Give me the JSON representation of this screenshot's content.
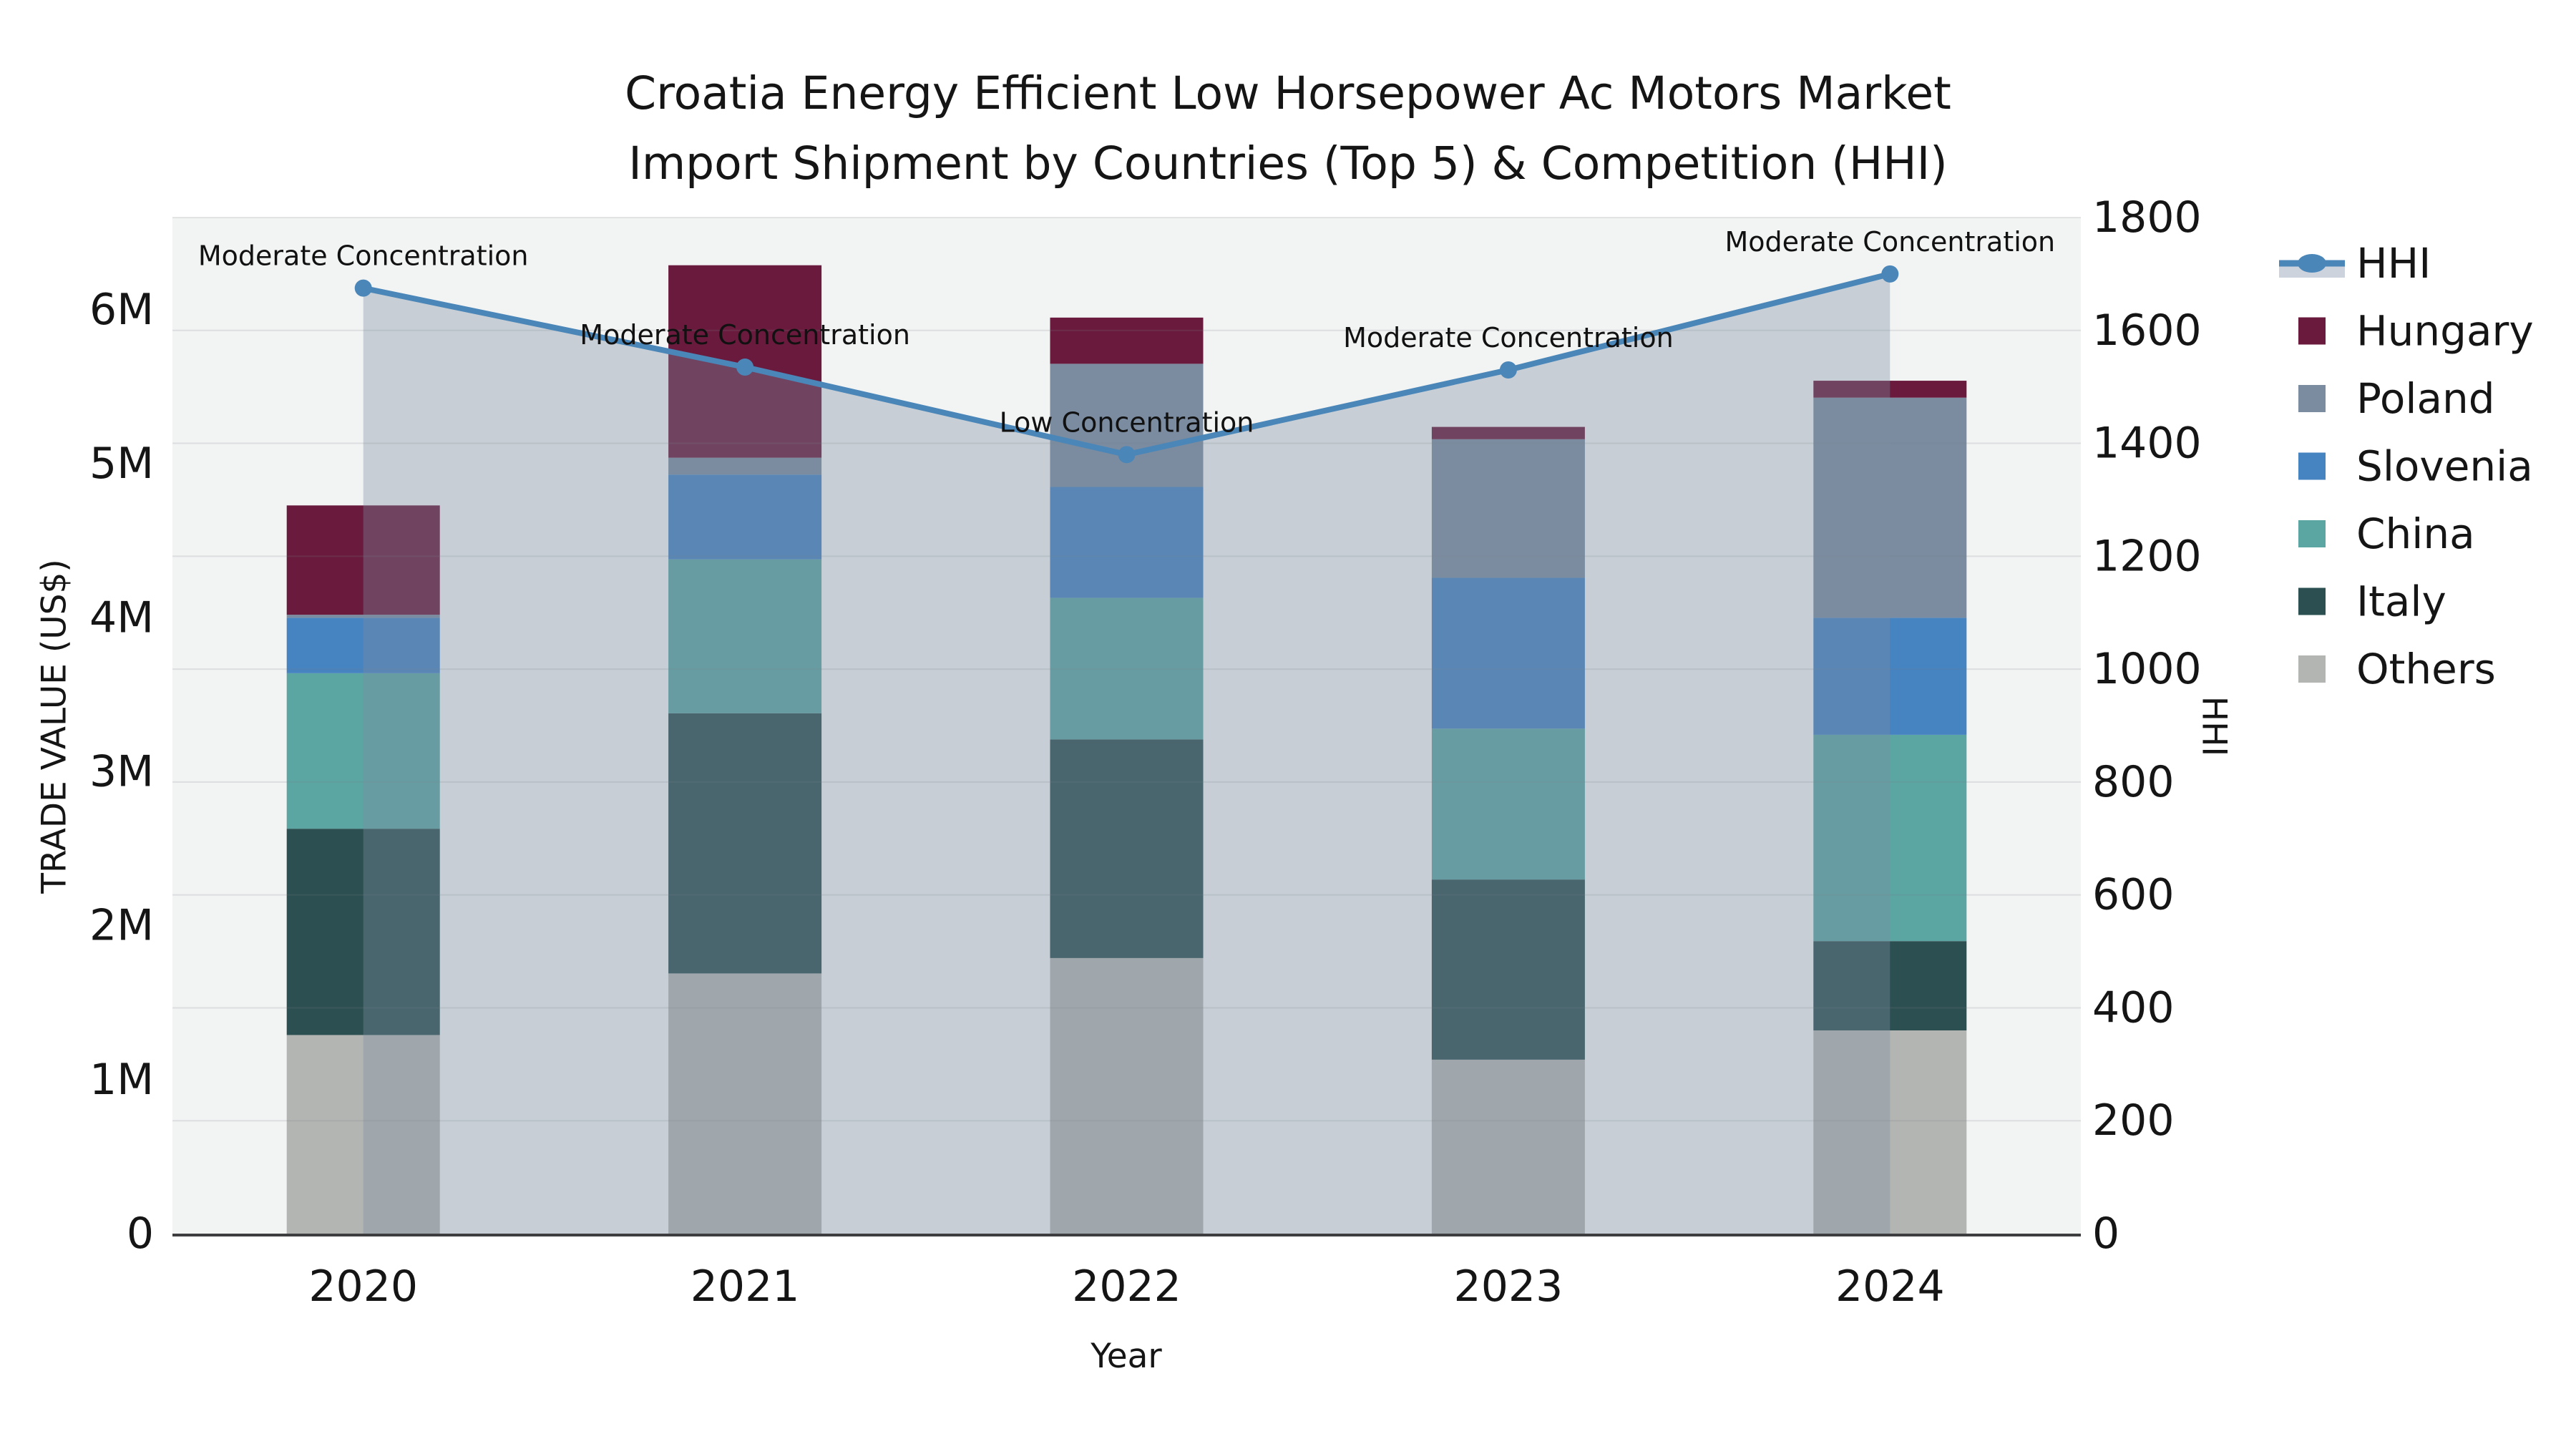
{
  "title": {
    "line1": "Croatia Energy Efficient Low Horsepower Ac Motors Market",
    "line2": "Import Shipment by Countries (Top 5) & Competition (HHI)"
  },
  "axes": {
    "x": {
      "label": "Year",
      "categories": [
        "2020",
        "2021",
        "2022",
        "2023",
        "2024"
      ]
    },
    "y_left": {
      "label": "TRADE VALUE (US$)",
      "ticks": [
        "0",
        "1M",
        "2M",
        "3M",
        "4M",
        "5M",
        "6M"
      ],
      "range_millions": [
        0,
        6.6
      ]
    },
    "y_right": {
      "label": "HHI",
      "ticks": [
        "0",
        "200",
        "400",
        "600",
        "800",
        "1000",
        "1200",
        "1400",
        "1600",
        "1800"
      ],
      "range": [
        0,
        1800
      ]
    }
  },
  "legend": {
    "items": [
      "HHI",
      "Hungary",
      "Poland",
      "Slovenia",
      "China",
      "Italy",
      "Others"
    ],
    "position": "right"
  },
  "colors": {
    "hhi_line": "#4A86B8",
    "hhi_area_fill": "rgba(125,141,161,0.36)",
    "hungary": "#6A1B3D",
    "poland": "#7B8CA0",
    "slovenia": "#4583C1",
    "china": "#5BA5A3",
    "italy": "#2C4F51",
    "others": "#B3B5B2",
    "plot_bg": "#F2F3F3",
    "grid": "rgba(120,127,135,0.18)",
    "axis_line": "#3E3E40",
    "text": "#151515"
  },
  "chart_data": {
    "type": "combo_stacked_bar_line",
    "categories": [
      "2020",
      "2021",
      "2022",
      "2023",
      "2024"
    ],
    "bar_unit": "million US$",
    "series": [
      {
        "name": "Hungary",
        "color": "#6A1B3D",
        "values": [
          0.71,
          1.25,
          0.3,
          0.08,
          0.11
        ]
      },
      {
        "name": "Poland",
        "color": "#7B8CA0",
        "values": [
          0.02,
          0.11,
          0.8,
          0.9,
          1.43
        ]
      },
      {
        "name": "Slovenia",
        "color": "#4583C1",
        "values": [
          0.36,
          0.55,
          0.72,
          0.98,
          0.76
        ]
      },
      {
        "name": "China",
        "color": "#5BA5A3",
        "values": [
          1.01,
          1.0,
          0.92,
          0.98,
          1.34
        ]
      },
      {
        "name": "Italy",
        "color": "#2C4F51",
        "values": [
          1.34,
          1.69,
          1.42,
          1.17,
          0.58
        ]
      },
      {
        "name": "Others",
        "color": "#B3B5B2",
        "values": [
          1.29,
          1.69,
          1.79,
          1.13,
          1.32
        ]
      }
    ],
    "stack_order_bottom_to_top": [
      "Others",
      "Italy",
      "China",
      "Slovenia",
      "Poland",
      "Hungary"
    ],
    "bar_totals_millions": [
      4.73,
      6.29,
      5.95,
      5.24,
      5.54
    ],
    "line": {
      "name": "HHI",
      "axis": "right",
      "color": "#4A86B8",
      "area_fill": "rgba(125,141,161,0.36)",
      "values": [
        1675,
        1535,
        1380,
        1530,
        1700
      ]
    },
    "annotations": [
      {
        "category": "2020",
        "text": "Moderate Concentration"
      },
      {
        "category": "2021",
        "text": "Moderate Concentration"
      },
      {
        "category": "2022",
        "text": "Low Concentration"
      },
      {
        "category": "2023",
        "text": "Moderate Concentration"
      },
      {
        "category": "2024",
        "text": "Moderate Concentration"
      }
    ],
    "ylim_left_millions": [
      0,
      6.6
    ],
    "ylim_right": [
      0,
      1800
    ],
    "grid": "horizontal gridlines at right-axis (HHI) ticks",
    "legend_position": "right"
  }
}
